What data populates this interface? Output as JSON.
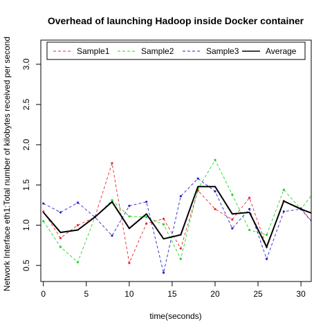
{
  "chart_data": {
    "type": "line",
    "title": "Overhead of launching Hadoop inside Docker container",
    "xlabel": "time(seconds)",
    "ylabel": "Network Interface eth1:Total number of kilobytes received per second",
    "xlim": [
      -0.3,
      31.2
    ],
    "ylim": [
      0.3,
      3.3
    ],
    "x_ticks": [
      0,
      5,
      10,
      15,
      20,
      25,
      30
    ],
    "y_ticks": [
      0.5,
      1.0,
      1.5,
      2.0,
      2.5,
      3.0
    ],
    "x_tick_labels": [
      "0",
      "5",
      "10",
      "15",
      "20",
      "25",
      "30"
    ],
    "y_tick_labels": [
      "0.5",
      "1.0",
      "1.5",
      "2.0",
      "2.5",
      "3.0"
    ],
    "legend_position": "top",
    "grid": false,
    "x": [
      0,
      2,
      4,
      6,
      8,
      10,
      12,
      14,
      16,
      18,
      20,
      22,
      24,
      26,
      28,
      30,
      32
    ],
    "series": [
      {
        "name": "Sample1",
        "color": "#e8262d",
        "dash": "dashed",
        "values": [
          1.17,
          0.84,
          1.0,
          1.1,
          1.77,
          0.53,
          1.02,
          1.08,
          0.71,
          1.43,
          1.2,
          1.07,
          1.34,
          0.73,
          1.3,
          1.21,
          0.95
        ]
      },
      {
        "name": "Sample2",
        "color": "#22d622",
        "dash": "dashed",
        "values": [
          1.05,
          0.73,
          0.54,
          1.1,
          1.31,
          1.11,
          1.1,
          1.01,
          0.58,
          1.45,
          1.81,
          1.38,
          0.94,
          0.88,
          1.44,
          1.2,
          1.48
        ]
      },
      {
        "name": "Sample3",
        "color": "#2424c8",
        "dash": "dashed",
        "values": [
          1.27,
          1.16,
          1.28,
          1.1,
          0.87,
          1.24,
          1.29,
          0.41,
          1.36,
          1.58,
          1.42,
          0.96,
          1.2,
          0.58,
          1.17,
          1.2,
          0.95
        ]
      },
      {
        "name": "Average",
        "color": "#000000",
        "dash": "solid",
        "values": [
          1.16,
          0.91,
          0.94,
          1.1,
          1.29,
          0.96,
          1.14,
          0.83,
          0.88,
          1.48,
          1.48,
          1.14,
          1.16,
          0.73,
          1.3,
          1.2,
          1.12
        ]
      }
    ]
  }
}
